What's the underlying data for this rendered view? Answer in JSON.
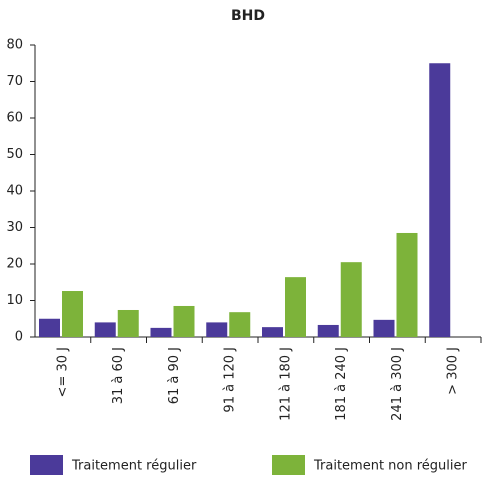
{
  "chart_data": {
    "type": "bar",
    "title": "BHD",
    "categories": [
      "<= 30 J",
      "31 à 60 J",
      "61 à 90 J",
      "91 à 120 J",
      "121 à 180 J",
      "181 à 240 J",
      "241 à 300 J",
      "> 300 J"
    ],
    "series": [
      {
        "name": "Traitement régulier",
        "color": "#4b3a9a",
        "values": [
          5,
          4,
          2.5,
          4,
          2.7,
          3.3,
          4.7,
          75
        ]
      },
      {
        "name": "Traitement non régulier",
        "color": "#7db33a",
        "values": [
          12.6,
          7.4,
          8.5,
          6.8,
          16.4,
          20.5,
          28.5,
          0
        ]
      }
    ],
    "ylim": [
      0,
      80
    ],
    "yticks": [
      0,
      10,
      20,
      30,
      40,
      50,
      60,
      70,
      80
    ],
    "legend": "bottom"
  }
}
